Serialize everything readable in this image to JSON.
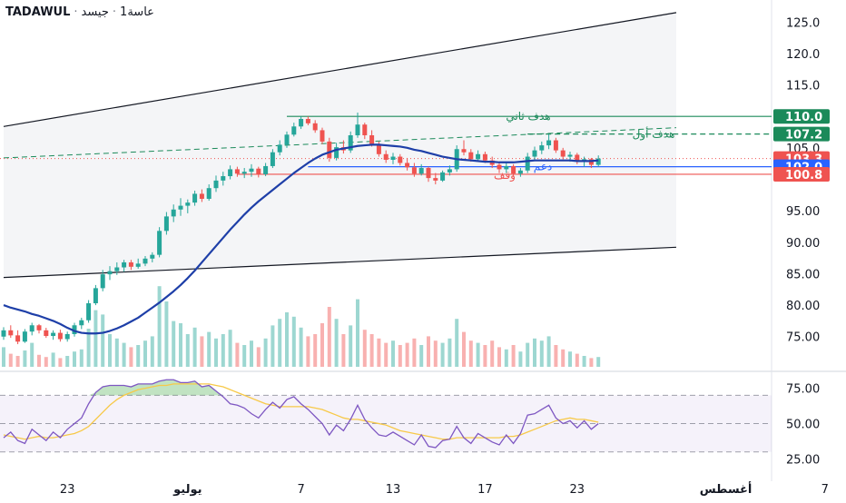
{
  "header": {
    "symbol": "TADAWUL",
    "interval": "1عاسة",
    "name": "جيسد"
  },
  "colors": {
    "up": "#26a69a",
    "down": "#ef5350",
    "ma": "#1e3fa8",
    "rsi": "#7e57c2",
    "rsi_ma": "#f7c948",
    "target": "#1b8a5a",
    "support": "#2962ff",
    "stop": "#ef5350",
    "channel": "#131722"
  },
  "price_axis": {
    "ticks": [
      "125.0",
      "120.0",
      "115.0",
      "105.0",
      "95.00",
      "90.00",
      "85.00",
      "80.00",
      "75.00"
    ],
    "tick_values": [
      125,
      120,
      115,
      105,
      95,
      90,
      85,
      80,
      75
    ],
    "range": [
      70.2,
      128.5
    ]
  },
  "badges": [
    {
      "text": "110.0",
      "value": 110.0,
      "kind": "target"
    },
    {
      "text": "107.2",
      "value": 107.2,
      "kind": "target"
    },
    {
      "text": "103.3",
      "value": 103.3,
      "kind": "last"
    },
    {
      "text": "102.0",
      "value": 102.0,
      "kind": "support"
    },
    {
      "text": "100.8",
      "value": 100.8,
      "kind": "stop"
    }
  ],
  "levels": [
    {
      "label": "هدف ثاني",
      "value": 110.0,
      "kind": "target"
    },
    {
      "label": "هدف أول",
      "value": 107.2,
      "kind": "target"
    },
    {
      "label": "دعم",
      "value": 102.0,
      "kind": "support"
    },
    {
      "label": "وقف",
      "value": 100.8,
      "kind": "stop"
    }
  ],
  "rsi_axis": {
    "ticks": [
      "75.00",
      "50.00",
      "25.00"
    ],
    "tick_values": [
      75,
      50,
      25
    ],
    "range": [
      17,
      85
    ]
  },
  "x_axis": {
    "labels": [
      {
        "text": "23",
        "bar": 9,
        "bold": false
      },
      {
        "text": "يوليو",
        "bar": 26,
        "bold": true
      },
      {
        "text": "7",
        "bar": 42,
        "bold": false
      },
      {
        "text": "13",
        "bar": 55,
        "bold": false
      },
      {
        "text": "17",
        "bar": 68,
        "bold": false
      },
      {
        "text": "23",
        "bar": 81,
        "bold": false
      },
      {
        "text": "أغسطس",
        "bar": 102,
        "bold": true
      },
      {
        "text": "7",
        "bar": 116,
        "bold": false
      }
    ]
  },
  "chart_data": {
    "type": "candlestick",
    "symbol": "TADAWUL",
    "candles": [
      [
        75.0,
        76.5,
        74.5,
        76.0
      ],
      [
        76.0,
        76.8,
        74.8,
        75.2
      ],
      [
        75.2,
        76.0,
        73.8,
        74.2
      ],
      [
        74.2,
        76.2,
        74.0,
        75.8
      ],
      [
        75.8,
        77.2,
        75.2,
        76.8
      ],
      [
        76.8,
        77.0,
        75.5,
        76.0
      ],
      [
        76.0,
        76.4,
        74.8,
        75.1
      ],
      [
        75.1,
        76.0,
        74.5,
        75.6
      ],
      [
        75.6,
        76.1,
        74.2,
        74.6
      ],
      [
        74.6,
        75.8,
        74.2,
        75.4
      ],
      [
        75.4,
        77.2,
        75.0,
        76.8
      ],
      [
        76.8,
        78.0,
        76.2,
        77.6
      ],
      [
        77.6,
        80.8,
        77.2,
        80.3
      ],
      [
        80.3,
        83.2,
        80.0,
        82.7
      ],
      [
        82.7,
        85.6,
        82.2,
        84.9
      ],
      [
        84.9,
        86.2,
        84.0,
        85.4
      ],
      [
        85.4,
        86.8,
        84.8,
        86.0
      ],
      [
        86.0,
        87.2,
        85.3,
        86.8
      ],
      [
        86.8,
        87.2,
        85.6,
        86.1
      ],
      [
        86.1,
        87.4,
        85.8,
        86.6
      ],
      [
        86.6,
        87.8,
        86.2,
        87.4
      ],
      [
        87.4,
        88.4,
        86.8,
        88.0
      ],
      [
        88.0,
        92.4,
        87.6,
        91.8
      ],
      [
        91.8,
        94.8,
        91.2,
        94.1
      ],
      [
        94.1,
        96.0,
        93.2,
        95.2
      ],
      [
        95.2,
        97.0,
        94.2,
        95.8
      ],
      [
        95.8,
        96.8,
        94.6,
        96.3
      ],
      [
        96.3,
        98.2,
        95.8,
        97.7
      ],
      [
        97.7,
        98.4,
        96.4,
        96.9
      ],
      [
        96.9,
        99.2,
        96.6,
        98.6
      ],
      [
        98.6,
        100.6,
        98.0,
        99.8
      ],
      [
        99.8,
        101.2,
        99.0,
        100.5
      ],
      [
        100.5,
        102.2,
        100.0,
        101.6
      ],
      [
        101.6,
        102.0,
        100.4,
        100.9
      ],
      [
        100.9,
        101.8,
        100.2,
        101.2
      ],
      [
        101.2,
        102.4,
        100.4,
        101.7
      ],
      [
        101.7,
        102.0,
        100.3,
        100.8
      ],
      [
        100.8,
        102.6,
        100.5,
        102.1
      ],
      [
        102.1,
        104.8,
        101.8,
        104.3
      ],
      [
        104.3,
        106.2,
        103.8,
        105.5
      ],
      [
        105.5,
        107.6,
        105.0,
        107.1
      ],
      [
        107.1,
        109.0,
        106.8,
        108.4
      ],
      [
        108.4,
        110.0,
        108.0,
        109.6
      ],
      [
        109.6,
        110.0,
        108.6,
        108.9
      ],
      [
        108.9,
        109.4,
        107.4,
        107.8
      ],
      [
        107.8,
        108.2,
        105.6,
        106.0
      ],
      [
        106.0,
        106.6,
        102.8,
        103.4
      ],
      [
        103.4,
        105.8,
        103.0,
        105.1
      ],
      [
        105.1,
        106.2,
        104.1,
        104.6
      ],
      [
        104.6,
        107.6,
        104.2,
        107.0
      ],
      [
        107.0,
        110.6,
        106.6,
        108.7
      ],
      [
        108.7,
        109.0,
        106.4,
        107.0
      ],
      [
        107.0,
        107.8,
        105.2,
        105.6
      ],
      [
        105.6,
        106.0,
        103.6,
        104.0
      ],
      [
        104.0,
        104.6,
        102.6,
        103.1
      ],
      [
        103.1,
        104.2,
        102.4,
        103.6
      ],
      [
        103.6,
        104.0,
        102.2,
        102.6
      ],
      [
        102.6,
        103.4,
        101.4,
        101.9
      ],
      [
        101.9,
        102.6,
        100.4,
        100.9
      ],
      [
        100.9,
        102.4,
        100.6,
        101.8
      ],
      [
        101.8,
        102.0,
        99.6,
        100.2
      ],
      [
        100.2,
        101.0,
        99.2,
        99.8
      ],
      [
        99.8,
        101.4,
        99.6,
        101.1
      ],
      [
        101.1,
        102.2,
        100.6,
        101.6
      ],
      [
        101.6,
        105.4,
        101.2,
        104.8
      ],
      [
        104.8,
        106.2,
        103.8,
        104.3
      ],
      [
        104.3,
        104.8,
        102.8,
        103.2
      ],
      [
        103.2,
        104.6,
        102.8,
        104.0
      ],
      [
        104.0,
        104.4,
        102.6,
        103.0
      ],
      [
        103.0,
        103.6,
        101.8,
        102.3
      ],
      [
        102.3,
        102.8,
        101.0,
        101.6
      ],
      [
        101.6,
        102.6,
        101.0,
        102.1
      ],
      [
        102.1,
        102.4,
        100.4,
        100.9
      ],
      [
        100.9,
        101.8,
        100.4,
        101.4
      ],
      [
        101.4,
        104.2,
        101.0,
        103.6
      ],
      [
        103.6,
        105.2,
        103.0,
        104.6
      ],
      [
        104.6,
        106.0,
        104.0,
        105.4
      ],
      [
        105.4,
        107.2,
        104.8,
        106.2
      ],
      [
        106.2,
        106.6,
        104.2,
        104.6
      ],
      [
        104.6,
        105.0,
        103.2,
        103.6
      ],
      [
        103.6,
        104.4,
        102.8,
        103.9
      ],
      [
        103.9,
        104.2,
        102.4,
        102.8
      ],
      [
        102.8,
        103.6,
        102.0,
        103.2
      ],
      [
        103.2,
        103.4,
        101.8,
        102.3
      ],
      [
        102.3,
        103.8,
        102.0,
        103.3
      ]
    ],
    "volume": [
      0.18,
      0.12,
      0.1,
      0.15,
      0.22,
      0.11,
      0.09,
      0.13,
      0.08,
      0.1,
      0.14,
      0.16,
      0.35,
      0.52,
      0.48,
      0.3,
      0.26,
      0.22,
      0.18,
      0.2,
      0.24,
      0.28,
      0.74,
      0.6,
      0.42,
      0.4,
      0.3,
      0.36,
      0.28,
      0.32,
      0.26,
      0.3,
      0.34,
      0.22,
      0.2,
      0.24,
      0.18,
      0.26,
      0.38,
      0.44,
      0.5,
      0.46,
      0.36,
      0.28,
      0.3,
      0.4,
      0.55,
      0.44,
      0.3,
      0.38,
      0.62,
      0.34,
      0.3,
      0.26,
      0.22,
      0.24,
      0.2,
      0.22,
      0.26,
      0.2,
      0.28,
      0.24,
      0.22,
      0.26,
      0.44,
      0.32,
      0.24,
      0.22,
      0.2,
      0.24,
      0.18,
      0.16,
      0.2,
      0.14,
      0.22,
      0.26,
      0.24,
      0.28,
      0.2,
      0.16,
      0.14,
      0.12,
      0.1,
      0.08,
      0.09
    ],
    "moving_average": [
      80.0,
      79.6,
      79.3,
      79.0,
      78.6,
      78.3,
      77.9,
      77.5,
      77.0,
      76.4,
      75.9,
      75.6,
      75.5,
      75.5,
      75.6,
      75.9,
      76.3,
      76.8,
      77.4,
      78.0,
      78.8,
      79.6,
      80.4,
      81.3,
      82.2,
      83.2,
      84.3,
      85.5,
      86.8,
      88.1,
      89.4,
      90.7,
      92.0,
      93.2,
      94.4,
      95.5,
      96.5,
      97.4,
      98.3,
      99.2,
      100.1,
      101.0,
      101.8,
      102.6,
      103.3,
      103.9,
      104.3,
      104.7,
      104.9,
      105.1,
      105.3,
      105.4,
      105.5,
      105.5,
      105.4,
      105.3,
      105.2,
      105.0,
      104.7,
      104.5,
      104.2,
      103.9,
      103.6,
      103.4,
      103.2,
      103.1,
      103.0,
      102.9,
      102.8,
      102.8,
      102.7,
      102.7,
      102.7,
      102.8,
      102.9,
      103.0,
      103.0,
      103.0,
      103.0,
      103.0,
      103.0,
      102.9,
      102.9,
      102.9,
      103.0
    ],
    "rsi": [
      40,
      44,
      38,
      36,
      46,
      42,
      38,
      44,
      40,
      46,
      50,
      54,
      64,
      72,
      76,
      77,
      77,
      77,
      76,
      78,
      78,
      78,
      80,
      81,
      81,
      79,
      79,
      80,
      76,
      77,
      73,
      69,
      64,
      63,
      61,
      57,
      54,
      60,
      65,
      61,
      67,
      69,
      64,
      60,
      55,
      50,
      42,
      49,
      45,
      53,
      63,
      53,
      47,
      42,
      41,
      44,
      41,
      38,
      35,
      42,
      34,
      33,
      38,
      39,
      48,
      40,
      36,
      43,
      40,
      37,
      35,
      42,
      36,
      43,
      56,
      57,
      60,
      63,
      54,
      50,
      52,
      47,
      52,
      46,
      50
    ],
    "rsi_ma": [
      42,
      41,
      40,
      39,
      40,
      41,
      40,
      40,
      41,
      42,
      43,
      45,
      48,
      53,
      58,
      63,
      67,
      70,
      72,
      74,
      75,
      76,
      77,
      77,
      78,
      78,
      78,
      78,
      78,
      78,
      77,
      76,
      74,
      72,
      70,
      68,
      66,
      64,
      63,
      62,
      62,
      62,
      62,
      62,
      61,
      60,
      58,
      56,
      54,
      53,
      53,
      52,
      51,
      50,
      49,
      47,
      45,
      44,
      43,
      42,
      41,
      40,
      39,
      39,
      40,
      40,
      40,
      40,
      40,
      40,
      40,
      41,
      41,
      42,
      44,
      46,
      48,
      50,
      52,
      53,
      54,
      53,
      53,
      52,
      51
    ],
    "channel": {
      "upper": [
        [
          0,
          108.4
        ],
        [
          95,
          126.5
        ]
      ],
      "lower": [
        [
          0,
          84.4
        ],
        [
          95,
          89.2
        ]
      ],
      "dashed": [
        [
          0,
          103.4
        ],
        [
          95,
          108.2
        ]
      ]
    }
  }
}
